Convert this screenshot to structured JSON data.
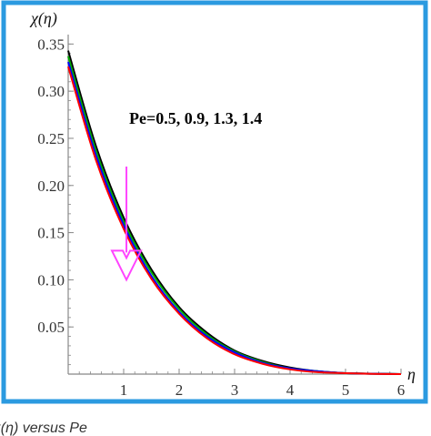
{
  "chart_data": {
    "type": "line",
    "ylabel": "χ(η)",
    "xlabel": "η",
    "xlim": [
      0,
      6
    ],
    "ylim": [
      0,
      0.36
    ],
    "x_ticks": [
      1,
      2,
      3,
      4,
      5,
      6
    ],
    "x_tick_labels": [
      "1",
      "2",
      "3",
      "4",
      "5",
      "6"
    ],
    "y_ticks": [
      0.05,
      0.1,
      0.15,
      0.2,
      0.25,
      0.3,
      0.35
    ],
    "y_tick_labels": [
      "0.05",
      "0.10",
      "0.15",
      "0.20",
      "0.25",
      "0.30",
      "0.35"
    ],
    "annotation": "Pe=0.5, 0.9, 1.3, 1.4",
    "arrow": {
      "from": [
        1.05,
        0.22
      ],
      "to": [
        1.05,
        0.1
      ],
      "direction": "increasing Pe"
    },
    "x": [
      0,
      0.5,
      1,
      1.5,
      2,
      2.5,
      3,
      3.5,
      4,
      4.5,
      5,
      5.5,
      6
    ],
    "series": [
      {
        "color": "#000000",
        "values": [
          0.343,
          0.242,
          0.166,
          0.111,
          0.071,
          0.044,
          0.025,
          0.014,
          0.007,
          0.003,
          0.001,
          0.0005,
          0.0
        ]
      },
      {
        "color": "#00aa00",
        "values": [
          0.337,
          0.237,
          0.162,
          0.108,
          0.069,
          0.042,
          0.024,
          0.013,
          0.006,
          0.003,
          0.001,
          0.0004,
          0.0
        ]
      },
      {
        "color": "#0000ff",
        "values": [
          0.331,
          0.232,
          0.158,
          0.104,
          0.066,
          0.04,
          0.023,
          0.012,
          0.006,
          0.003,
          0.001,
          0.0004,
          0.0
        ]
      },
      {
        "color": "#ff0000",
        "values": [
          0.326,
          0.227,
          0.154,
          0.101,
          0.064,
          0.038,
          0.021,
          0.011,
          0.005,
          0.002,
          0.001,
          0.0003,
          0.0
        ]
      }
    ]
  },
  "caption": "χ(η) versus Pe",
  "colors": {
    "frame": "#2b9ae0",
    "arrow": "#ff44ff",
    "axis": "#888888"
  }
}
